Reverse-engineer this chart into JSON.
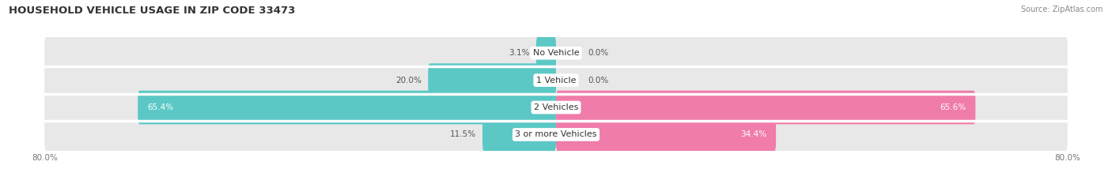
{
  "title": "HOUSEHOLD VEHICLE USAGE IN ZIP CODE 33473",
  "source": "Source: ZipAtlas.com",
  "categories": [
    "No Vehicle",
    "1 Vehicle",
    "2 Vehicles",
    "3 or more Vehicles"
  ],
  "owner_values": [
    3.1,
    20.0,
    65.4,
    11.5
  ],
  "renter_values": [
    0.0,
    0.0,
    65.6,
    34.4
  ],
  "owner_color": "#5bc8c5",
  "renter_color": "#f07caa",
  "bar_bg_color": "#e8e8e8",
  "axis_min": -80.0,
  "axis_max": 80.0,
  "bar_height": 0.62,
  "title_fontsize": 9.5,
  "label_fontsize": 7.5,
  "cat_fontsize": 8.0,
  "tick_fontsize": 7.5,
  "source_fontsize": 7.0,
  "fig_width": 14.06,
  "fig_height": 2.33,
  "dpi": 100
}
